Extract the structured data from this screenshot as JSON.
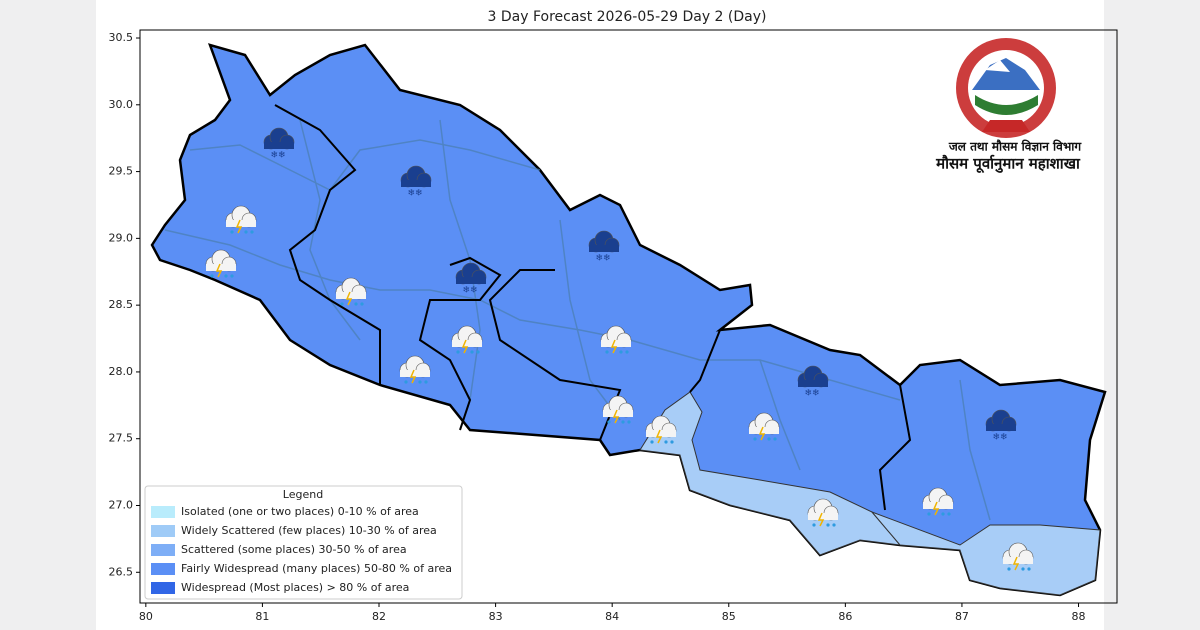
{
  "chart_data": {
    "type": "map",
    "title": "3 Day Forecast 2026-05-29 Day 2 (Day)",
    "xlim": [
      79.95,
      88.33
    ],
    "ylim": [
      26.27,
      30.56
    ],
    "xticks": [
      80,
      81,
      82,
      83,
      84,
      85,
      86,
      87,
      88
    ],
    "yticks": [
      30.5,
      {
        "value": 30,
        "label": "30.0"
      },
      29.5,
      {
        "value": 29,
        "label": "29.0"
      },
      28.5,
      {
        "value": 28,
        "label": "28.0"
      },
      27.5,
      {
        "value": 27,
        "label": "27.0"
      },
      26.5
    ],
    "legend": {
      "title": "Legend",
      "position": "lower left",
      "entries": [
        {
          "label": "Isolated (one or two places)  0-10 % of area",
          "color": "#b9ecfc"
        },
        {
          "label": "Widely Scattered (few places)  10-30 % of area",
          "color": "#9fcbf7"
        },
        {
          "label": "Scattered (some places)  30-50 % of area",
          "color": "#7eaef6"
        },
        {
          "label": "Fairly Widespread (many places)  50-80 % of area",
          "color": "#5b8ff5"
        },
        {
          "label": "Widespread (Most places) > 80 % of area",
          "color": "#3166e6"
        }
      ]
    },
    "emblem_text": [
      "जल तथा मौसम विज्ञान विभाग",
      "मौसम पूर्वानुमान महाशाखा"
    ]
  }
}
